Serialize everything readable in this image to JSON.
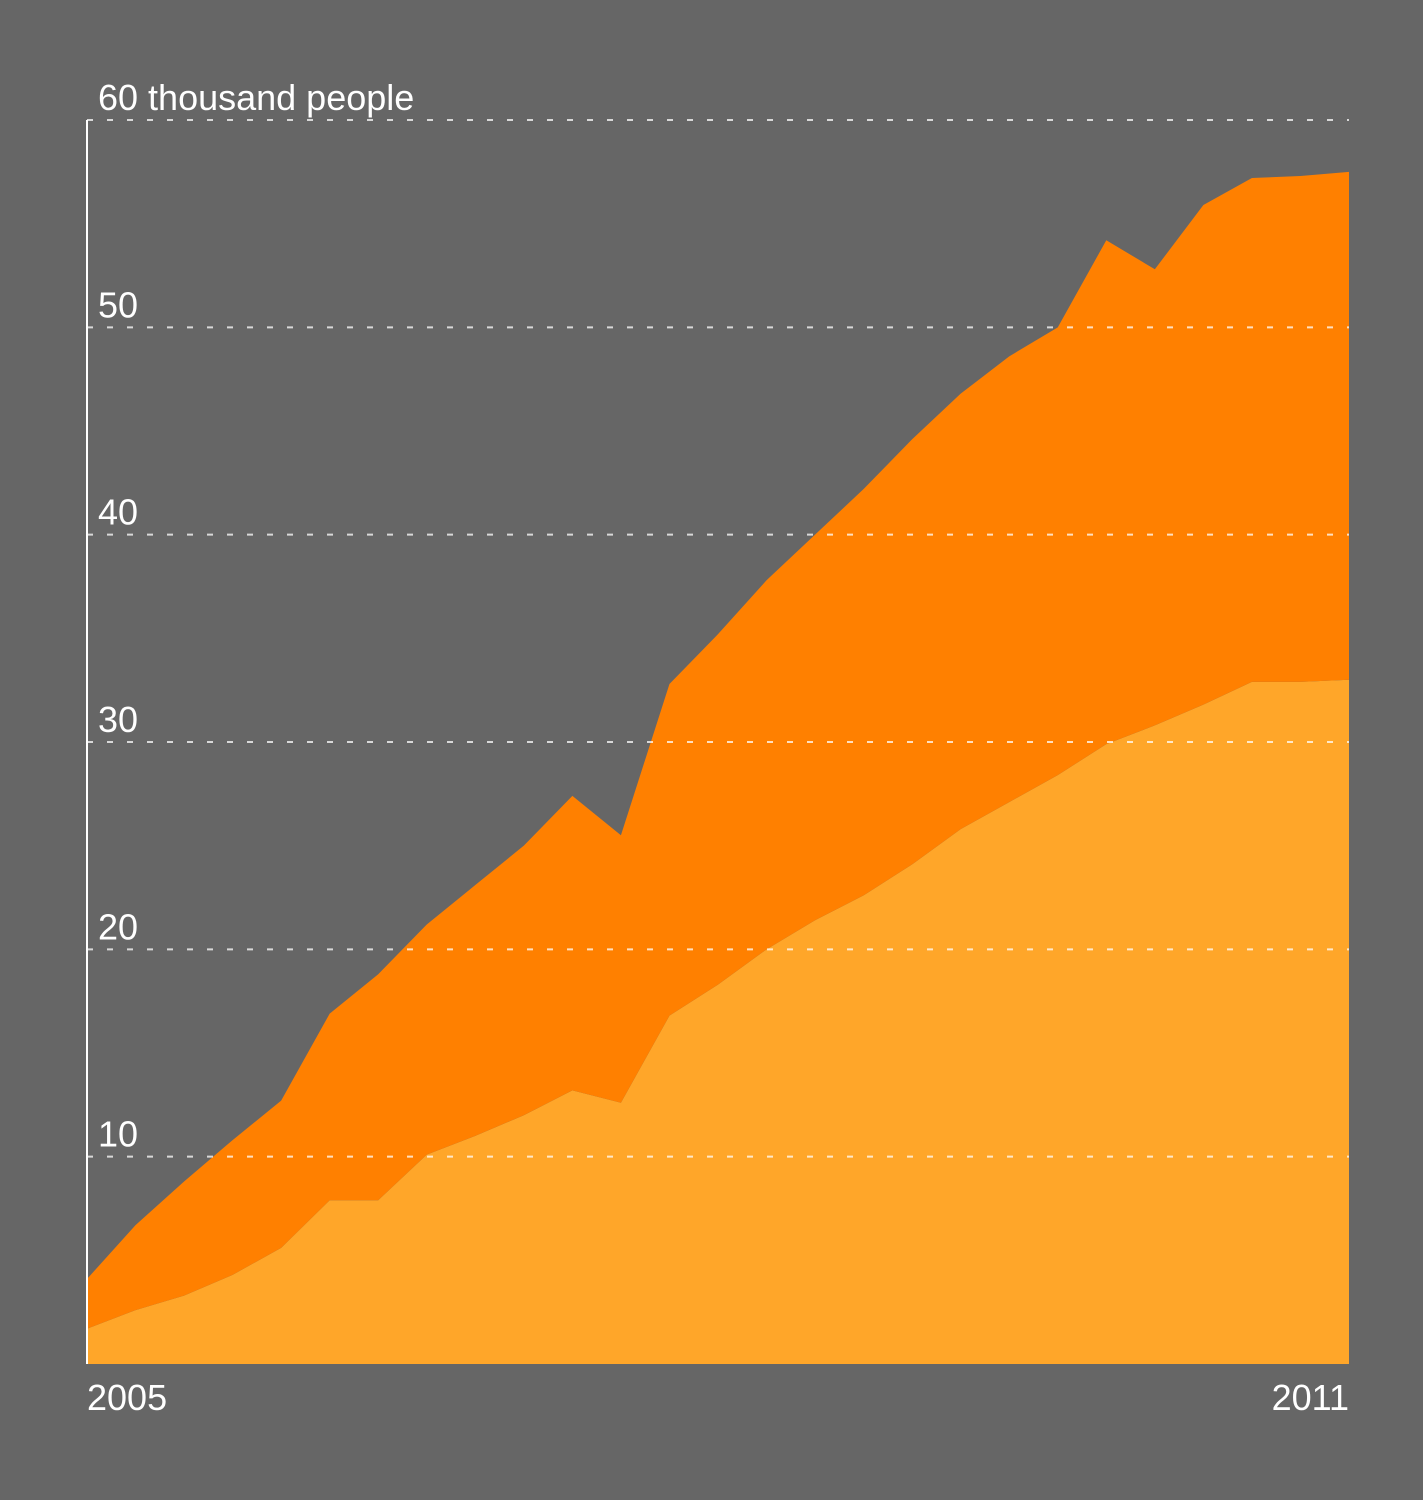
{
  "chart_data": {
    "type": "stacked_area",
    "categories": [
      "2005",
      null,
      null,
      null,
      null,
      null,
      null,
      null,
      null,
      null,
      null,
      null,
      null,
      null,
      null,
      null,
      null,
      null,
      null,
      null,
      null,
      null,
      null,
      null,
      null,
      null,
      "2011"
    ],
    "series": [
      {
        "color": "#ffa629",
        "values": [
          1.7,
          2.6,
          3.3,
          4.3,
          5.6,
          7.9,
          7.9,
          10.1,
          11.0,
          12.0,
          13.2,
          12.6,
          16.8,
          18.3,
          20.0,
          21.4,
          22.6,
          24.1,
          25.8,
          27.1,
          28.4,
          29.9,
          30.8,
          31.8,
          32.9,
          32.9,
          33.0
        ]
      },
      {
        "color": "#ff8000",
        "values": [
          2.4,
          4.1,
          5.5,
          6.5,
          7.1,
          9.0,
          10.9,
          11.1,
          12.1,
          13.0,
          14.2,
          12.9,
          16.0,
          16.9,
          17.8,
          18.6,
          19.6,
          20.5,
          21.0,
          21.5,
          21.6,
          24.3,
          22.0,
          24.1,
          24.3,
          24.4,
          24.5
        ]
      }
    ],
    "ylim": [
      0,
      60
    ],
    "yticks": [
      10,
      20,
      30,
      40,
      50,
      {
        "value": 60,
        "label": "60 thousand people"
      }
    ],
    "grid": true
  }
}
